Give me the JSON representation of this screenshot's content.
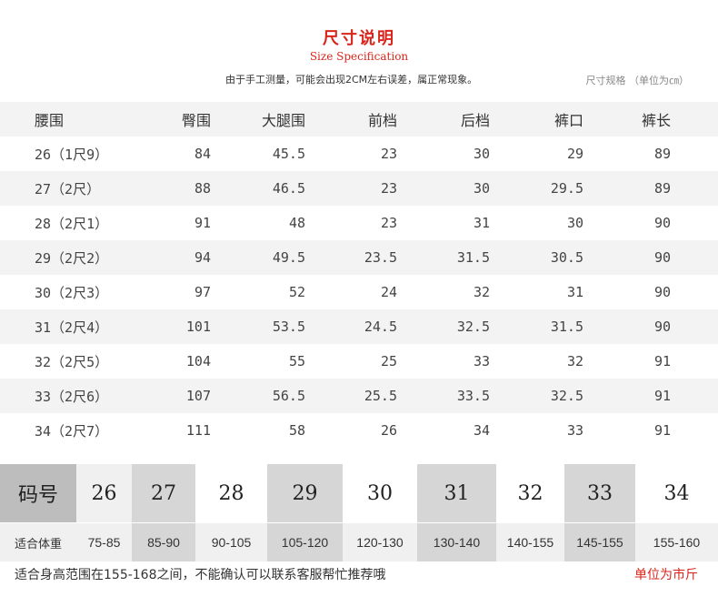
{
  "colors": {
    "accent": "#d9261c",
    "band": "#f3f3f3",
    "gray_dark": "#bdbdbd",
    "gray_mid": "#d6d6d6",
    "gray_light": "#f0f0f0",
    "white": "#ffffff"
  },
  "header": {
    "title": "尺寸说明",
    "subtitle": "Size Specification",
    "note": "由于手工测量，可能会出现2CM左右误差，属正常现象。",
    "unit_spec": "尺寸规格 （单位为㎝）"
  },
  "size_table": {
    "headers": [
      "腰围",
      "臀围",
      "大腿围",
      "前档",
      "后档",
      "裤口",
      "裤长"
    ],
    "rows": [
      [
        "26（1尺9）",
        "84",
        "45.5",
        "23",
        "30",
        "29",
        "89"
      ],
      [
        "27（2尺）",
        "88",
        "46.5",
        "23",
        "30",
        "29.5",
        "89"
      ],
      [
        "28（2尺1）",
        "91",
        "48",
        "23",
        "31",
        "30",
        "90"
      ],
      [
        "29（2尺2）",
        "94",
        "49.5",
        "23.5",
        "31.5",
        "30.5",
        "90"
      ],
      [
        "30（2尺3）",
        "97",
        "52",
        "24",
        "32",
        "31",
        "90"
      ],
      [
        "31（2尺4）",
        "101",
        "53.5",
        "24.5",
        "32.5",
        "31.5",
        "90"
      ],
      [
        "32（2尺5）",
        "104",
        "55",
        "25",
        "33",
        "32",
        "91"
      ],
      [
        "33（2尺6）",
        "107",
        "56.5",
        "25.5",
        "33.5",
        "32.5",
        "91"
      ],
      [
        "34（2尺7）",
        "111",
        "58",
        "26",
        "34",
        "33",
        "91"
      ]
    ]
  },
  "weight_table": {
    "code_label": "码号",
    "weight_label": "适合体重",
    "codes": [
      "26",
      "27",
      "28",
      "29",
      "30",
      "31",
      "32",
      "33",
      "34"
    ],
    "weights": [
      "75-85",
      "85-90",
      "90-105",
      "105-120",
      "120-130",
      "130-140",
      "140-155",
      "145-155",
      "155-160"
    ]
  },
  "footer": {
    "height_note": "适合身高范围在155-168之间，不能确认可以联系客服帮忙推荐哦",
    "unit_note": "单位为市斤"
  }
}
